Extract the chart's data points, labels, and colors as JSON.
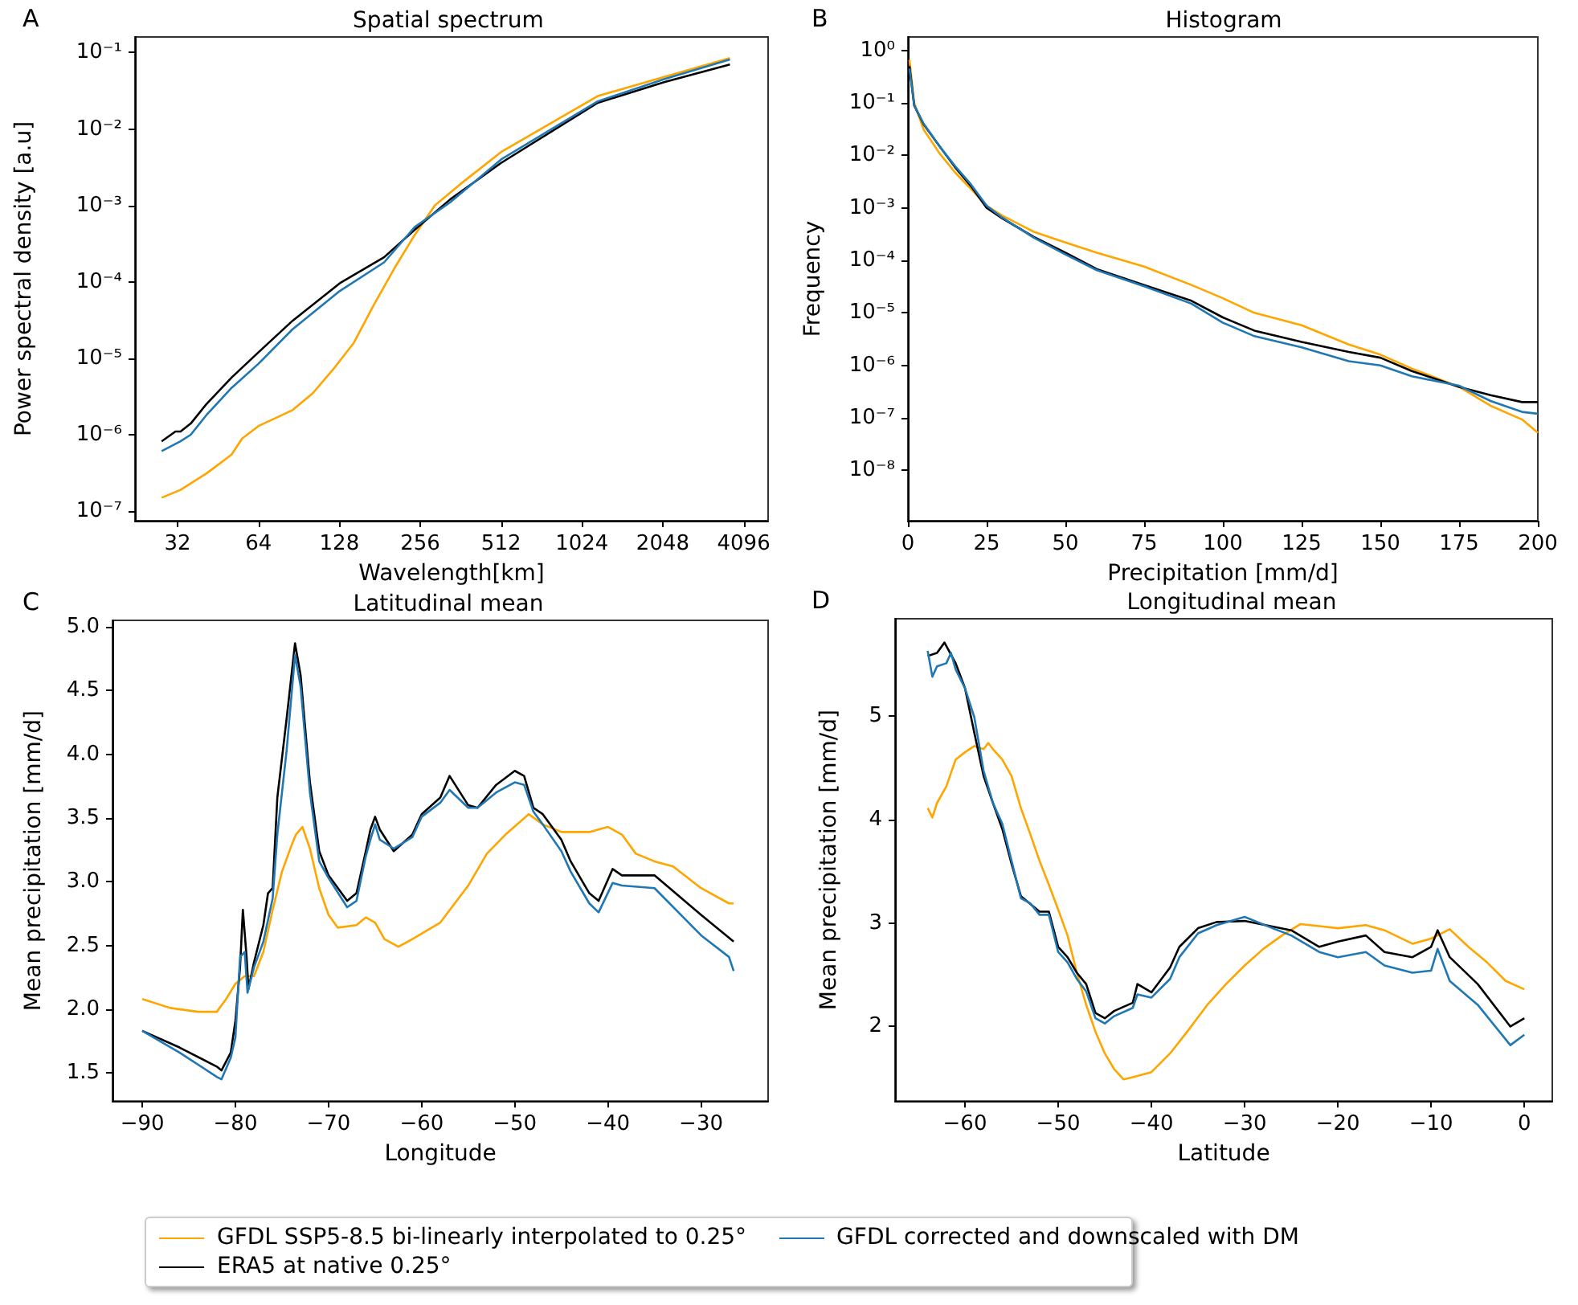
{
  "chart_data": [
    {
      "type": "line",
      "title": "Spatial spectrum",
      "annotations": [
        "A"
      ],
      "xlabel": "Wavelength[km]",
      "ylabel": "Power spectral density [a.u]",
      "log": "xy",
      "legend": "bottom",
      "xlim": [
        22.2,
        5050
      ],
      "xticks": [
        32,
        64,
        128,
        256,
        512,
        1024,
        2048,
        4096
      ],
      "ylim": [
        7.5e-08,
        0.16
      ],
      "yticks": [
        {
          "value": 1e-07,
          "label": "10⁻⁷"
        },
        {
          "value": 1e-06,
          "label": "10⁻⁶"
        },
        {
          "value": 1e-05,
          "label": "10⁻⁵"
        },
        {
          "value": 0.0001,
          "label": "10⁻⁴"
        },
        {
          "value": 0.001,
          "label": "10⁻³"
        },
        {
          "value": 0.01,
          "label": "10⁻²"
        },
        {
          "value": 0.1,
          "label": "10⁻¹"
        }
      ],
      "series": [
        {
          "name": "GFDL SSP5-8.5 bi-linearly interpolated to 0.25°",
          "color": "#ffa500",
          "x": [
            27.9,
            32.8,
            40.9,
            50.8,
            55.6,
            64,
            85.7,
            102,
            121.5,
            145,
            172,
            205,
            244,
            290,
            361,
            512,
            1172,
            2070,
            3640
          ],
          "values": [
            1.5e-07,
            1.9e-07,
            3.1e-07,
            5.5e-07,
            8.9e-07,
            1.3e-06,
            2.1e-06,
            3.5e-06,
            7.2e-06,
            1.6e-05,
            5e-05,
            0.00015,
            0.00041,
            0.001,
            0.0019,
            0.005,
            0.027,
            0.048,
            0.085
          ]
        },
        {
          "name": "ERA5 at native 0.25°",
          "color": "#000000",
          "x": [
            27.9,
            31.4,
            32.8,
            35.8,
            40.9,
            50.8,
            64,
            85.7,
            128.5,
            187.8,
            244,
            331,
            512,
            1172,
            2070,
            3640
          ],
          "values": [
            8.2e-07,
            1.1e-06,
            1.1e-06,
            1.4e-06,
            2.5e-06,
            5.6e-06,
            1.2e-05,
            3.1e-05,
            9.6e-05,
            0.00021,
            0.00048,
            0.0012,
            0.0036,
            0.022,
            0.041,
            0.07
          ]
        },
        {
          "name": "GFDL corrected and downscaled with DM",
          "color": "#1f77b4",
          "x": [
            27.9,
            32.8,
            35.8,
            40.9,
            50.8,
            64,
            85.7,
            128.5,
            187.8,
            244,
            331,
            512,
            1172,
            2070,
            3640
          ],
          "values": [
            6.1e-07,
            8.2e-07,
            1e-06,
            1.8e-06,
            4.1e-06,
            8.5e-06,
            2.4e-05,
            7.6e-05,
            0.00018,
            0.00052,
            0.0011,
            0.004,
            0.023,
            0.045,
            0.081
          ]
        }
      ]
    },
    {
      "type": "line",
      "title": "Histogram",
      "annotations": [
        "B"
      ],
      "xlabel": "Precipitation [mm/d]",
      "ylabel": "Frequency",
      "log": "y",
      "xlim": [
        0,
        200
      ],
      "xticks": [
        0,
        25,
        50,
        75,
        100,
        125,
        150,
        175,
        200
      ],
      "ylim": [
        1.1e-09,
        1.8
      ],
      "yticks": [
        {
          "value": 1e-08,
          "label": "10⁻⁸"
        },
        {
          "value": 1e-07,
          "label": "10⁻⁷"
        },
        {
          "value": 1e-06,
          "label": "10⁻⁶"
        },
        {
          "value": 1e-05,
          "label": "10⁻⁵"
        },
        {
          "value": 0.0001,
          "label": "10⁻⁴"
        },
        {
          "value": 0.001,
          "label": "10⁻³"
        },
        {
          "value": 0.01,
          "label": "10⁻²"
        },
        {
          "value": 0.1,
          "label": "10⁻¹"
        },
        {
          "value": 1,
          "label": "10⁰"
        }
      ],
      "x": [
        0.5,
        2,
        5,
        10,
        15,
        20,
        25,
        30,
        40,
        50,
        60,
        75,
        90,
        100,
        110,
        125,
        140,
        150,
        160,
        175,
        185,
        195,
        200
      ],
      "series": [
        {
          "color": "#ffa500",
          "values": [
            0.66,
            0.1,
            0.031,
            0.011,
            0.0047,
            0.0023,
            0.0011,
            0.00071,
            0.00035,
            0.00022,
            0.00014,
            7.6e-05,
            3.4e-05,
            1.9e-05,
            1e-05,
            5.8e-06,
            2.5e-06,
            1.6e-06,
            8.7e-07,
            3.9e-07,
            1.7e-07,
            9.3e-08,
            5.2e-08
          ]
        },
        {
          "color": "#000000",
          "values": [
            0.5,
            0.089,
            0.039,
            0.015,
            0.0059,
            0.0026,
            0.001,
            0.00063,
            0.00028,
            0.00014,
            6.8e-05,
            3.4e-05,
            1.7e-05,
            8.2e-06,
            4.6e-06,
            2.8e-06,
            1.8e-06,
            1.4e-06,
            7.8e-07,
            3.9e-07,
            2.7e-07,
            2e-07,
            2e-07
          ]
        },
        {
          "color": "#1f77b4",
          "values": [
            0.45,
            0.09,
            0.04,
            0.015,
            0.0062,
            0.0028,
            0.0011,
            0.00065,
            0.00027,
            0.00013,
            6.5e-05,
            3.2e-05,
            1.5e-05,
            6.5e-06,
            3.6e-06,
            2.2e-06,
            1.2e-06,
            1e-06,
            6.2e-07,
            4.1e-07,
            2.1e-07,
            1.3e-07,
            1.2e-07
          ]
        }
      ]
    },
    {
      "type": "line",
      "title": "Latitudinal mean",
      "annotations": [
        "C"
      ],
      "xlabel": "Longitude",
      "ylabel": "Mean precipitation [mm/d]",
      "xlim": [
        -93.2,
        -22.8
      ],
      "xticks": [
        {
          "value": -90,
          "label": "−90"
        },
        {
          "value": -80,
          "label": "−80"
        },
        {
          "value": -70,
          "label": "−70"
        },
        {
          "value": -60,
          "label": "−60"
        },
        {
          "value": -50,
          "label": "−50"
        },
        {
          "value": -40,
          "label": "−40"
        },
        {
          "value": -30,
          "label": "−30"
        }
      ],
      "ylim": [
        1.28,
        5.05
      ],
      "yticks": [
        1.5,
        {
          "value": 2,
          "label": "2.0"
        },
        2.5,
        {
          "value": 3,
          "label": "3.0"
        },
        3.5,
        {
          "value": 4,
          "label": "4.0"
        },
        4.5,
        {
          "value": 5,
          "label": "5.0"
        }
      ],
      "series": [
        {
          "color": "#ffa500",
          "x": [
            -90,
            -87,
            -84,
            -82,
            -81,
            -80,
            -79,
            -78,
            -77,
            -76,
            -75,
            -74,
            -73.5,
            -72.8,
            -72,
            -71,
            -70,
            -69,
            -67,
            -66,
            -65,
            -64,
            -62.5,
            -61,
            -58,
            -55,
            -53,
            -51,
            -48.5,
            -47,
            -45,
            -42,
            -40,
            -38.5,
            -37,
            -35,
            -33,
            -30,
            -27,
            -26.5
          ],
          "values": [
            2.08,
            2.01,
            1.98,
            1.98,
            2.08,
            2.2,
            2.26,
            2.26,
            2.45,
            2.78,
            3.08,
            3.28,
            3.37,
            3.43,
            3.26,
            2.95,
            2.74,
            2.64,
            2.66,
            2.72,
            2.68,
            2.55,
            2.49,
            2.55,
            2.68,
            2.97,
            3.22,
            3.37,
            3.53,
            3.45,
            3.39,
            3.39,
            3.43,
            3.37,
            3.22,
            3.16,
            3.12,
            2.95,
            2.83,
            2.83
          ]
        },
        {
          "color": "#000000",
          "x": [
            -90,
            -86,
            -82,
            -81.5,
            -80.5,
            -80,
            -79.5,
            -79.2,
            -78.8,
            -78.6,
            -78,
            -77,
            -76.5,
            -76,
            -75.5,
            -74.5,
            -73.6,
            -73,
            -72,
            -71,
            -70,
            -68,
            -67,
            -66,
            -65.5,
            -65,
            -64.5,
            -63,
            -61,
            -60,
            -58,
            -57,
            -55,
            -54,
            -52,
            -50,
            -49,
            -48,
            -47,
            -45,
            -44,
            -42,
            -41,
            -39.5,
            -38.5,
            -35,
            -30,
            -26.5
          ],
          "values": [
            1.83,
            1.7,
            1.55,
            1.52,
            1.66,
            1.91,
            2.33,
            2.78,
            2.41,
            2.16,
            2.37,
            2.66,
            2.91,
            2.95,
            3.66,
            4.28,
            4.87,
            4.62,
            3.78,
            3.24,
            3.05,
            2.85,
            2.91,
            3.24,
            3.41,
            3.51,
            3.41,
            3.24,
            3.37,
            3.53,
            3.66,
            3.83,
            3.6,
            3.58,
            3.76,
            3.87,
            3.83,
            3.58,
            3.53,
            3.33,
            3.16,
            2.91,
            2.85,
            3.1,
            3.05,
            3.05,
            2.74,
            2.53
          ]
        },
        {
          "color": "#1f77b4",
          "x": [
            -90,
            -86,
            -82,
            -81.5,
            -80.5,
            -80,
            -79.5,
            -79,
            -78.7,
            -78,
            -77,
            -76.5,
            -76,
            -75.5,
            -74.5,
            -73.6,
            -73,
            -72,
            -71,
            -70,
            -68,
            -67,
            -66,
            -65.5,
            -65,
            -64.5,
            -63,
            -61,
            -60,
            -58,
            -57,
            -55,
            -54,
            -52,
            -50,
            -49,
            -48,
            -47,
            -45,
            -44,
            -42,
            -41,
            -39.5,
            -38.5,
            -35,
            -30,
            -27,
            -26.5
          ],
          "values": [
            1.83,
            1.66,
            1.47,
            1.45,
            1.62,
            1.78,
            2.41,
            2.45,
            2.13,
            2.33,
            2.53,
            2.7,
            2.87,
            3.37,
            4.03,
            4.78,
            4.53,
            3.7,
            3.16,
            3.03,
            2.8,
            2.85,
            3.2,
            3.33,
            3.45,
            3.33,
            3.26,
            3.35,
            3.51,
            3.62,
            3.72,
            3.58,
            3.58,
            3.7,
            3.78,
            3.76,
            3.55,
            3.45,
            3.24,
            3.08,
            2.83,
            2.76,
            2.99,
            2.97,
            2.95,
            2.58,
            2.41,
            2.3
          ]
        }
      ]
    },
    {
      "type": "line",
      "title": "Longitudinal mean",
      "annotations": [
        "D"
      ],
      "xlabel": "Latitude",
      "ylabel": "Mean precipitation [mm/d]",
      "xlim": [
        -67.5,
        3
      ],
      "xticks": [
        {
          "value": -60,
          "label": "−60"
        },
        {
          "value": -50,
          "label": "−50"
        },
        {
          "value": -40,
          "label": "−40"
        },
        {
          "value": -30,
          "label": "−30"
        },
        {
          "value": -20,
          "label": "−20"
        },
        {
          "value": -10,
          "label": "−10"
        },
        0
      ],
      "ylim": [
        1.28,
        5.94
      ],
      "yticks": [
        2,
        3,
        4,
        5
      ],
      "series": [
        {
          "color": "#ffa500",
          "x": [
            -64,
            -63.5,
            -63,
            -62,
            -61,
            -60,
            -59,
            -58,
            -57.5,
            -57,
            -56,
            -55,
            -54,
            -53,
            -52,
            -51,
            -50,
            -49,
            -48,
            -47,
            -46,
            -45,
            -44,
            -43,
            -42,
            -40,
            -38,
            -36,
            -34,
            -32,
            -30,
            -28,
            -26,
            -24,
            -22,
            -20,
            -17,
            -15,
            -12,
            -10,
            -8,
            -6,
            -4,
            -2,
            0
          ],
          "values": [
            4.11,
            4.02,
            4.16,
            4.32,
            4.58,
            4.65,
            4.71,
            4.68,
            4.74,
            4.68,
            4.58,
            4.42,
            4.11,
            3.86,
            3.6,
            3.37,
            3.13,
            2.88,
            2.52,
            2.21,
            1.95,
            1.74,
            1.59,
            1.49,
            1.51,
            1.56,
            1.74,
            1.97,
            2.21,
            2.41,
            2.59,
            2.75,
            2.88,
            2.99,
            2.97,
            2.95,
            2.98,
            2.93,
            2.8,
            2.85,
            2.94,
            2.77,
            2.62,
            2.44,
            2.36
          ]
        },
        {
          "color": "#000000",
          "x": [
            -64,
            -63,
            -62.2,
            -61,
            -60,
            -59,
            -58,
            -57,
            -56,
            -55,
            -54,
            -52,
            -51,
            -50,
            -49,
            -48,
            -47,
            -46,
            -45,
            -44,
            -42,
            -41.5,
            -40,
            -38,
            -37,
            -35,
            -33,
            -30,
            -25,
            -22,
            -20,
            -17,
            -15,
            -12,
            -10,
            -9.3,
            -8,
            -5,
            -1.5,
            0
          ],
          "values": [
            5.58,
            5.61,
            5.71,
            5.51,
            5.27,
            4.84,
            4.42,
            4.16,
            3.91,
            3.57,
            3.26,
            3.11,
            3.11,
            2.77,
            2.67,
            2.52,
            2.41,
            2.13,
            2.08,
            2.15,
            2.23,
            2.41,
            2.33,
            2.57,
            2.77,
            2.95,
            3.01,
            3.02,
            2.93,
            2.77,
            2.82,
            2.88,
            2.72,
            2.67,
            2.77,
            2.93,
            2.67,
            2.41,
            2.0,
            2.08
          ]
        },
        {
          "color": "#1f77b4",
          "x": [
            -64,
            -63.5,
            -63,
            -62,
            -61.5,
            -61,
            -60,
            -59,
            -58,
            -57,
            -56,
            -55,
            -54,
            -53,
            -52,
            -51,
            -50,
            -49,
            -48,
            -47,
            -46,
            -45,
            -44,
            -42,
            -41.5,
            -40,
            -38,
            -37,
            -35,
            -33,
            -30,
            -27,
            -25,
            -22,
            -20,
            -17,
            -15,
            -12,
            -10,
            -9.3,
            -8,
            -5,
            -1.5,
            0
          ],
          "values": [
            5.63,
            5.38,
            5.48,
            5.51,
            5.61,
            5.45,
            5.27,
            4.99,
            4.47,
            4.16,
            3.96,
            3.6,
            3.24,
            3.19,
            3.08,
            3.08,
            2.72,
            2.62,
            2.46,
            2.34,
            2.08,
            2.03,
            2.1,
            2.18,
            2.31,
            2.28,
            2.46,
            2.67,
            2.9,
            2.98,
            3.06,
            2.95,
            2.88,
            2.72,
            2.67,
            2.72,
            2.59,
            2.52,
            2.54,
            2.75,
            2.44,
            2.21,
            1.82,
            1.92
          ]
        }
      ]
    }
  ]
}
